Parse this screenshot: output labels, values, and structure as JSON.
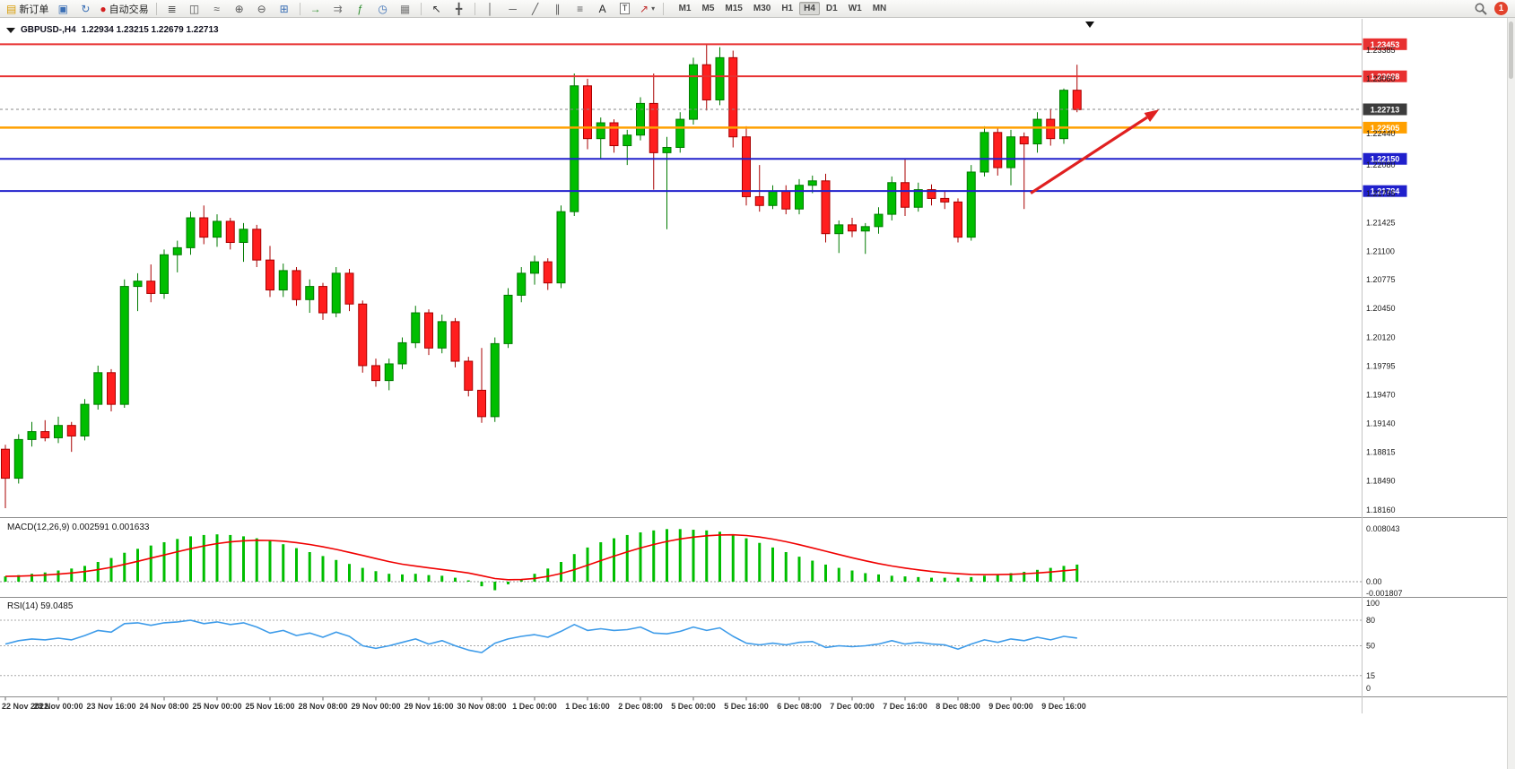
{
  "toolbar": {
    "items": [
      {
        "name": "new-order-button",
        "glyph": "▤",
        "glyph_color": "#D79B00",
        "label": "新订单"
      },
      {
        "name": "chart-windows-button",
        "glyph": "▣",
        "glyph_color": "#3B6FB5"
      },
      {
        "name": "refresh-button",
        "glyph": "↻",
        "glyph_color": "#3B6FB5"
      },
      {
        "name": "auto-trading-button",
        "glyph": "●",
        "glyph_color": "#D42020",
        "label": "自动交易"
      },
      {
        "name": "sep"
      },
      {
        "name": "bar-chart-button",
        "glyph": "≣",
        "glyph_color": "#555555"
      },
      {
        "name": "candlestick-chart-button",
        "glyph": "◫",
        "glyph_color": "#555555"
      },
      {
        "name": "line-chart-button",
        "glyph": "≈",
        "glyph_color": "#555555"
      },
      {
        "name": "zoom-in-button",
        "glyph": "⊕",
        "glyph_color": "#555555"
      },
      {
        "name": "zoom-out-button",
        "glyph": "⊖",
        "glyph_color": "#555555"
      },
      {
        "name": "tile-windows-button",
        "glyph": "⊞",
        "glyph_color": "#3B6FB5"
      },
      {
        "name": "sep"
      },
      {
        "name": "auto-scroll-button",
        "glyph": "→",
        "glyph_color": "#2F8F2F"
      },
      {
        "name": "chart-shift-button",
        "glyph": "⇉",
        "glyph_color": "#777777"
      },
      {
        "name": "indicators-button",
        "glyph": "ƒ",
        "glyph_color": "#2F8F2F"
      },
      {
        "name": "periods-button",
        "glyph": "◷",
        "glyph_color": "#3B6FB5"
      },
      {
        "name": "templates-button",
        "glyph": "▦",
        "glyph_color": "#777777"
      },
      {
        "name": "sep"
      },
      {
        "name": "cursor-button",
        "glyph": "↖",
        "glyph_color": "#333333"
      },
      {
        "name": "crosshair-button",
        "glyph": "╋",
        "glyph_color": "#555555"
      },
      {
        "name": "sep"
      },
      {
        "name": "vertical-line-button",
        "glyph": "│",
        "glyph_color": "#555555"
      },
      {
        "name": "horizontal-line-button",
        "glyph": "─",
        "glyph_color": "#555555"
      },
      {
        "name": "trendline-button",
        "glyph": "╱",
        "glyph_color": "#555555"
      },
      {
        "name": "equidistant-channel-button",
        "glyph": "∥",
        "glyph_color": "#555555"
      },
      {
        "name": "fibonacci-button",
        "glyph": "≡",
        "glyph_color": "#555555"
      },
      {
        "name": "text-button",
        "glyph": "A",
        "glyph_color": "#222222"
      },
      {
        "name": "text-label-button",
        "glyph": "T",
        "glyph_color": "#222222",
        "boxed": true
      },
      {
        "name": "arrows-button",
        "glyph": "↗",
        "glyph_color": "#C03030",
        "caret": true
      },
      {
        "name": "sep"
      }
    ],
    "timeframes": [
      "M1",
      "M5",
      "M15",
      "M30",
      "H1",
      "H4",
      "D1",
      "W1",
      "MN"
    ],
    "active_timeframe": "H4",
    "notification_count": "1"
  },
  "chart": {
    "title": {
      "symbol": "GBPUSD-,H4",
      "ohlc": "1.22934 1.23215 1.22679 1.22713"
    },
    "price_axis_ticks": [
      "1.23385",
      "1.23060",
      "1.22440",
      "1.22080",
      "1.21755",
      "1.21425",
      "1.21100",
      "1.20775",
      "1.20450",
      "1.20120",
      "1.19795",
      "1.19470",
      "1.19140",
      "1.18815",
      "1.18490",
      "1.18160"
    ],
    "time_axis_labels": [
      "22 Nov 2022",
      "23 Nov 00:00",
      "23 Nov 16:00",
      "24 Nov 08:00",
      "25 Nov 00:00",
      "25 Nov 16:00",
      "28 Nov 08:00",
      "29 Nov 00:00",
      "29 Nov 16:00",
      "30 Nov 08:00",
      "1 Dec 00:00",
      "1 Dec 16:00",
      "2 Dec 08:00",
      "5 Dec 00:00",
      "5 Dec 16:00",
      "6 Dec 08:00",
      "7 Dec 00:00",
      "7 Dec 16:00",
      "8 Dec 08:00",
      "9 Dec 00:00",
      "9 Dec 16:00"
    ],
    "hlines": [
      {
        "price": 1.23453,
        "label": "1.23453",
        "color": "#E83030",
        "width": 2
      },
      {
        "price": 1.23088,
        "label": "1.23088",
        "color": "#E83030",
        "width": 2
      },
      {
        "price": 1.22505,
        "label": "1.22505",
        "color": "#FFA000",
        "width": 2.5
      },
      {
        "price": 1.2215,
        "label": "1.22150",
        "color": "#2020CC",
        "width": 2
      },
      {
        "price": 1.21784,
        "label": "1.21784",
        "color": "#2020CC",
        "width": 2
      }
    ],
    "current_price": {
      "value": 1.22713,
      "label": "1.22713",
      "tag_color": "#3C3C3C"
    },
    "arrow": {
      "from_index": 77.5,
      "from_price": 1.2176,
      "to_index": 87.2,
      "to_price": 1.2271,
      "color": "#E02020"
    }
  },
  "indicators": {
    "macd": {
      "display": "MACD(12,26,9) 0.002591 0.001633"
    },
    "rsi": {
      "display": "RSI(14) 59.0485"
    }
  },
  "chart_data": [
    {
      "type": "candlestick",
      "symbol": "GBPUSD-",
      "timeframe": "H4",
      "current": {
        "open": 1.22934,
        "high": 1.23215,
        "low": 1.22679,
        "close": 1.22713
      },
      "ylim": [
        1.18088,
        1.2365
      ],
      "colors": {
        "up": "#00BE00",
        "up_border": "#007A00",
        "down": "#FF1E1E",
        "down_border": "#A80000"
      },
      "candles": [
        [
          1.1885,
          1.189,
          1.1818,
          1.1852
        ],
        [
          1.1852,
          1.1902,
          1.1846,
          1.1896
        ],
        [
          1.1896,
          1.1916,
          1.1888,
          1.1905
        ],
        [
          1.1905,
          1.1918,
          1.1894,
          1.1898
        ],
        [
          1.1898,
          1.1922,
          1.1892,
          1.1912
        ],
        [
          1.1912,
          1.1916,
          1.1882,
          1.19
        ],
        [
          1.19,
          1.1942,
          1.1895,
          1.1936
        ],
        [
          1.1936,
          1.198,
          1.193,
          1.1972
        ],
        [
          1.1972,
          1.1976,
          1.1928,
          1.1936
        ],
        [
          1.1936,
          1.2078,
          1.1932,
          1.207
        ],
        [
          1.207,
          1.2085,
          1.2042,
          1.2076
        ],
        [
          1.2076,
          1.2095,
          1.2052,
          1.2062
        ],
        [
          1.2062,
          1.2112,
          1.2056,
          1.2106
        ],
        [
          1.2106,
          1.2122,
          1.2086,
          1.2114
        ],
        [
          1.2114,
          1.2155,
          1.2106,
          1.2148
        ],
        [
          1.2148,
          1.2162,
          1.2118,
          1.2126
        ],
        [
          1.2126,
          1.2152,
          1.2115,
          1.2144
        ],
        [
          1.2144,
          1.2148,
          1.2112,
          1.212
        ],
        [
          1.212,
          1.2142,
          1.2098,
          1.2135
        ],
        [
          1.2135,
          1.214,
          1.2092,
          1.21
        ],
        [
          1.21,
          1.2116,
          1.2058,
          1.2066
        ],
        [
          1.2066,
          1.2096,
          1.2058,
          1.2088
        ],
        [
          1.2088,
          1.2092,
          1.2048,
          1.2055
        ],
        [
          1.2055,
          1.2078,
          1.204,
          1.207
        ],
        [
          1.207,
          1.2074,
          1.2032,
          1.204
        ],
        [
          1.204,
          1.2092,
          1.2035,
          1.2085
        ],
        [
          1.2085,
          1.209,
          1.2042,
          1.205
        ],
        [
          1.205,
          1.2054,
          1.1972,
          1.198
        ],
        [
          1.198,
          1.1988,
          1.1956,
          1.1963
        ],
        [
          1.1963,
          1.1988,
          1.1952,
          1.1982
        ],
        [
          1.1982,
          1.2012,
          1.1976,
          1.2006
        ],
        [
          1.2006,
          1.2048,
          1.2,
          1.204
        ],
        [
          1.204,
          1.2044,
          1.1992,
          1.2
        ],
        [
          1.2,
          1.2038,
          1.1994,
          1.203
        ],
        [
          1.203,
          1.2034,
          1.1978,
          1.1985
        ],
        [
          1.1985,
          1.199,
          1.1945,
          1.1952
        ],
        [
          1.1952,
          1.2,
          1.1915,
          1.1922
        ],
        [
          1.1922,
          1.2012,
          1.1916,
          1.2005
        ],
        [
          1.2005,
          1.2068,
          1.2,
          1.206
        ],
        [
          1.206,
          1.2092,
          1.2052,
          1.2085
        ],
        [
          1.2085,
          1.2105,
          1.2072,
          1.2098
        ],
        [
          1.2098,
          1.2102,
          1.2066,
          1.2074
        ],
        [
          1.2074,
          1.2162,
          1.2068,
          1.2155
        ],
        [
          1.2155,
          1.2312,
          1.215,
          1.2298
        ],
        [
          1.2298,
          1.2306,
          1.2226,
          1.2238
        ],
        [
          1.2238,
          1.2262,
          1.2215,
          1.2256
        ],
        [
          1.2256,
          1.226,
          1.2222,
          1.223
        ],
        [
          1.223,
          1.2248,
          1.2208,
          1.2242
        ],
        [
          1.2242,
          1.2285,
          1.2236,
          1.2278
        ],
        [
          1.2278,
          1.2312,
          1.218,
          1.2222
        ],
        [
          1.2222,
          1.224,
          1.2135,
          1.2228
        ],
        [
          1.2228,
          1.2268,
          1.2222,
          1.226
        ],
        [
          1.226,
          1.233,
          1.2254,
          1.2322
        ],
        [
          1.2322,
          1.2345,
          1.227,
          1.2282
        ],
        [
          1.2282,
          1.2342,
          1.2276,
          1.233
        ],
        [
          1.233,
          1.2338,
          1.2228,
          1.224
        ],
        [
          1.224,
          1.2252,
          1.2162,
          1.2172
        ],
        [
          1.2172,
          1.2208,
          1.2155,
          1.2162
        ],
        [
          1.2162,
          1.2185,
          1.2158,
          1.2178
        ],
        [
          1.2178,
          1.2185,
          1.2152,
          1.2158
        ],
        [
          1.2158,
          1.2192,
          1.2152,
          1.2185
        ],
        [
          1.2185,
          1.2196,
          1.2176,
          1.219
        ],
        [
          1.219,
          1.2198,
          1.212,
          1.213
        ],
        [
          1.213,
          1.2145,
          1.2108,
          1.214
        ],
        [
          1.214,
          1.2148,
          1.2126,
          1.2133
        ],
        [
          1.2133,
          1.2142,
          1.2107,
          1.2138
        ],
        [
          1.2138,
          1.216,
          1.213,
          1.2152
        ],
        [
          1.2152,
          1.2195,
          1.2145,
          1.2188
        ],
        [
          1.2188,
          1.2215,
          1.215,
          1.216
        ],
        [
          1.216,
          1.2188,
          1.2155,
          1.218
        ],
        [
          1.218,
          1.2186,
          1.2162,
          1.217
        ],
        [
          1.217,
          1.2178,
          1.2158,
          1.2166
        ],
        [
          1.2166,
          1.217,
          1.212,
          1.2126
        ],
        [
          1.2126,
          1.2208,
          1.2122,
          1.22
        ],
        [
          1.22,
          1.2252,
          1.2195,
          1.2245
        ],
        [
          1.2245,
          1.225,
          1.2196,
          1.2205
        ],
        [
          1.2205,
          1.2248,
          1.2185,
          1.224
        ],
        [
          1.224,
          1.2245,
          1.2158,
          1.2232
        ],
        [
          1.2232,
          1.2268,
          1.2222,
          1.226
        ],
        [
          1.226,
          1.2272,
          1.223,
          1.2238
        ],
        [
          1.2238,
          1.2295,
          1.2232,
          1.2293
        ],
        [
          1.2293,
          1.2322,
          1.2268,
          1.2271
        ]
      ]
    },
    {
      "type": "bar",
      "name": "MACD",
      "params": [
        12,
        26,
        9
      ],
      "macd_value": 0.002591,
      "signal_value": 0.001633,
      "yticks": [
        "0.008043",
        "0.00",
        "-0.001807"
      ],
      "ylim": [
        -0.00191,
        0.00859
      ],
      "colors": {
        "histogram": "#00BE00",
        "signal": "#F00000"
      },
      "values": [
        0.0008,
        0.001,
        0.0012,
        0.0014,
        0.0017,
        0.002,
        0.0024,
        0.003,
        0.0036,
        0.0044,
        0.005,
        0.0055,
        0.006,
        0.0065,
        0.0069,
        0.0071,
        0.0072,
        0.0071,
        0.0069,
        0.0066,
        0.0062,
        0.0057,
        0.0051,
        0.0045,
        0.0039,
        0.0033,
        0.0027,
        0.0021,
        0.0016,
        0.0012,
        0.0011,
        0.0012,
        0.001,
        0.0009,
        0.0006,
        0.0002,
        -0.0007,
        -0.0013,
        -0.0004,
        0.0004,
        0.0012,
        0.002,
        0.003,
        0.0042,
        0.0052,
        0.006,
        0.0066,
        0.0071,
        0.0075,
        0.0078,
        0.008,
        0.008,
        0.0079,
        0.0078,
        0.0076,
        0.0072,
        0.0066,
        0.0059,
        0.0052,
        0.0045,
        0.0038,
        0.0032,
        0.0026,
        0.0021,
        0.0017,
        0.0013,
        0.0011,
        0.0009,
        0.0008,
        0.0007,
        0.0006,
        0.0006,
        0.0006,
        0.0007,
        0.0009,
        0.0011,
        0.0013,
        0.0015,
        0.0018,
        0.0021,
        0.0024,
        0.0026
      ]
    },
    {
      "type": "line",
      "name": "RSI",
      "period": 14,
      "value": 59.0485,
      "yticks": [
        "100",
        "80",
        "50",
        "15",
        "0"
      ],
      "levels": [
        80,
        50,
        15
      ],
      "ylim": [
        0,
        100
      ],
      "color": "#3D9BE9",
      "values": [
        52,
        56,
        58,
        57,
        59,
        57,
        62,
        68,
        66,
        76,
        77,
        74,
        77,
        78,
        80,
        76,
        78,
        75,
        77,
        72,
        65,
        68,
        62,
        65,
        60,
        66,
        61,
        50,
        47,
        50,
        54,
        58,
        52,
        56,
        50,
        45,
        42,
        53,
        58,
        61,
        63,
        60,
        67,
        75,
        68,
        70,
        68,
        69,
        72,
        65,
        64,
        67,
        72,
        68,
        71,
        61,
        53,
        51,
        53,
        51,
        54,
        55,
        48,
        50,
        49,
        50,
        52,
        56,
        52,
        54,
        52,
        51,
        46,
        52,
        57,
        54,
        58,
        56,
        60,
        57,
        61,
        59.05
      ]
    }
  ]
}
